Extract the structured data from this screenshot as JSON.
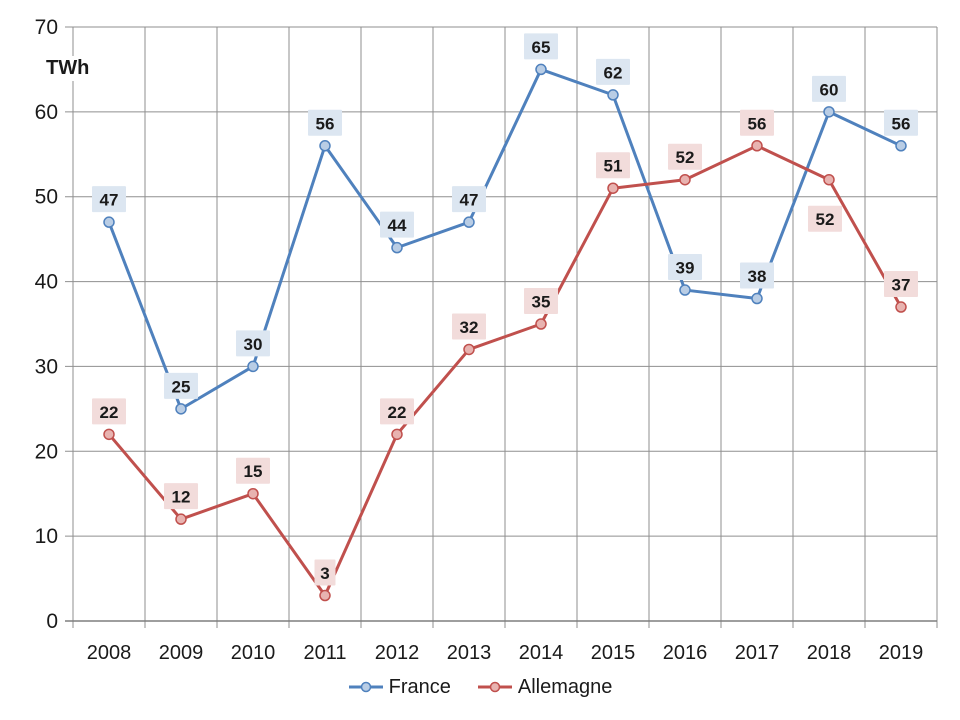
{
  "chart_data": {
    "type": "line",
    "title": "",
    "xlabel": "",
    "ylabel": "TWh",
    "categories": [
      "2008",
      "2009",
      "2010",
      "2011",
      "2012",
      "2013",
      "2014",
      "2015",
      "2016",
      "2017",
      "2018",
      "2019"
    ],
    "series": [
      {
        "name": "France",
        "values": [
          47,
          25,
          30,
          56,
          44,
          47,
          65,
          62,
          39,
          38,
          60,
          56
        ],
        "line_color": "#4F81BD",
        "marker_fill": "#B9CDE5",
        "label_bg": "#DCE6F1"
      },
      {
        "name": "Allemagne",
        "values": [
          22,
          12,
          15,
          3,
          22,
          32,
          35,
          51,
          52,
          56,
          52,
          37
        ],
        "line_color": "#C0504D",
        "marker_fill": "#E8B3B0",
        "label_bg": "#F2DCDB",
        "label_offsets": {
          "10": [
            -4,
            39
          ]
        }
      }
    ],
    "ylim": [
      0,
      70
    ],
    "yticks": [
      0,
      10,
      20,
      30,
      40,
      50,
      60,
      70
    ],
    "grid": "both",
    "legend_position": "bottom",
    "axis_color": "#7F7F7F",
    "grid_color": "#8F8F8F",
    "text_color": "#1A1A1A",
    "label_text_color": "#1A1A1A",
    "background": "#FFFFFF"
  }
}
